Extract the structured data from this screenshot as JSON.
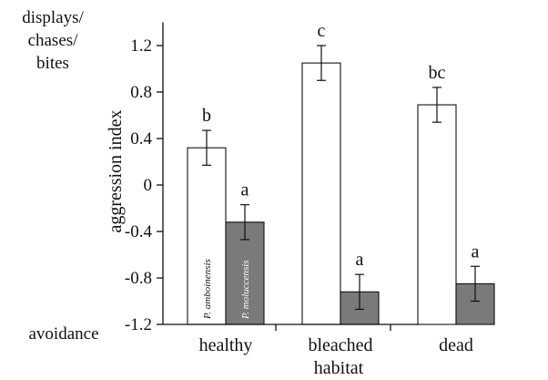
{
  "chart_data": {
    "type": "bar",
    "title": "",
    "xlabel": "habitat",
    "ylabel": "aggression index",
    "ylim": [
      -1.2,
      1.4
    ],
    "yticks": [
      "1.2",
      "0.8",
      "0.4",
      "0",
      "-0.4",
      "-0.8",
      "-1.2"
    ],
    "ytick_values": [
      1.2,
      0.8,
      0.4,
      0,
      -0.4,
      -0.8,
      -1.2
    ],
    "categories": [
      "healthy",
      "bleached",
      "dead"
    ],
    "top_label": "displays/\nchases/\nbites",
    "bottom_label": "avoidance",
    "series": [
      {
        "name": "P. amboinensis",
        "color": "#ffffff",
        "values": [
          0.32,
          1.05,
          0.69
        ],
        "errors": [
          0.15,
          0.15,
          0.15
        ],
        "sig": [
          "b",
          "c",
          "bc"
        ]
      },
      {
        "name": "P. moluccensis",
        "color": "#7a7a7a",
        "values": [
          -0.32,
          -0.92,
          -0.85
        ],
        "errors": [
          0.15,
          0.15,
          0.15
        ],
        "sig": [
          "a",
          "a",
          "a"
        ]
      }
    ]
  }
}
